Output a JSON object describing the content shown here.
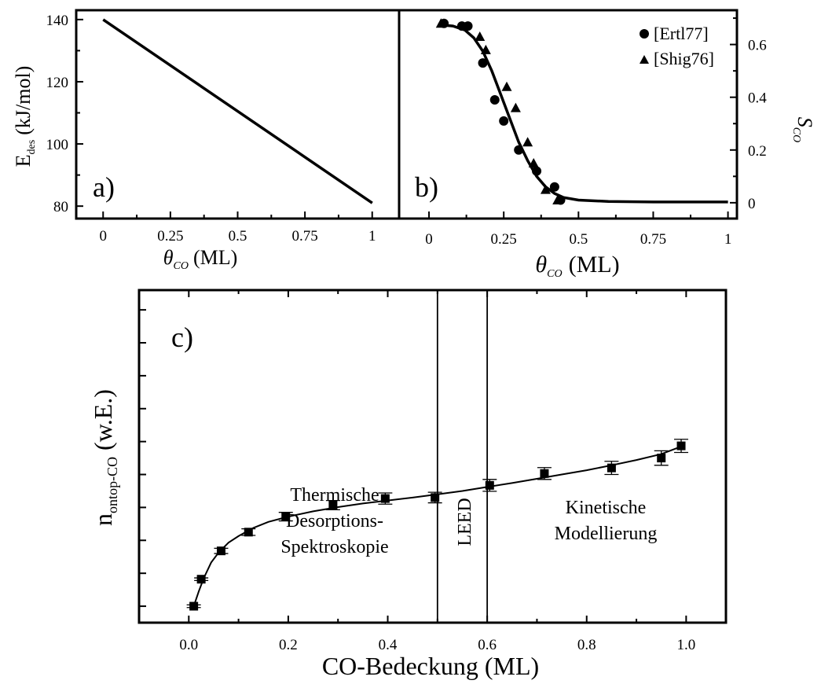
{
  "chart_data": [
    {
      "type": "line",
      "panel_label": "a)",
      "xlabel_symbol": "θ",
      "xlabel_sub": "CO",
      "xlabel_unit": "(ML)",
      "ylabel_main": "E",
      "ylabel_sub": "des",
      "ylabel_unit": "(kJ/mol)",
      "xlim": [
        -0.1,
        1.1
      ],
      "ylim": [
        76,
        143
      ],
      "xticks": [
        0,
        0.25,
        0.5,
        0.75,
        1
      ],
      "xtick_labels": [
        "0",
        "0.25",
        "0.5",
        "0.75",
        "1"
      ],
      "yticks": [
        80,
        100,
        120,
        140
      ],
      "ytick_labels": [
        "80",
        "100",
        "120",
        "140"
      ],
      "series": [
        {
          "x": [
            0,
            1
          ],
          "y": [
            140,
            81
          ]
        }
      ]
    },
    {
      "type": "scatter",
      "panel_label": "b)",
      "xlabel_symbol": "θ",
      "xlabel_sub": "CO",
      "xlabel_unit": "(ML)",
      "ylabel_main": "S",
      "ylabel_sub": "CO",
      "xlim": [
        -0.1,
        1.03
      ],
      "ylim": [
        -0.06,
        0.73
      ],
      "xticks": [
        0,
        0.25,
        0.5,
        0.75,
        1
      ],
      "xtick_labels": [
        "0",
        "0.25",
        "0.5",
        "0.75",
        "1"
      ],
      "yticks": [
        0,
        0.2,
        0.4,
        0.6
      ],
      "ytick_labels": [
        "0",
        "0.2",
        "0.4",
        "0.6"
      ],
      "legend_position": "top-right",
      "series": [
        {
          "name": "[Ertl77]",
          "marker": "circle",
          "x": [
            0.05,
            0.11,
            0.13,
            0.18,
            0.22,
            0.25,
            0.3,
            0.36,
            0.42,
            0.44
          ],
          "y": [
            0.68,
            0.67,
            0.67,
            0.53,
            0.39,
            0.31,
            0.2,
            0.12,
            0.06,
            0.01
          ]
        },
        {
          "name": "[Shig76]",
          "marker": "triangle",
          "x": [
            0.04,
            0.17,
            0.19,
            0.26,
            0.29,
            0.33,
            0.35,
            0.39,
            0.43
          ],
          "y": [
            0.68,
            0.63,
            0.58,
            0.44,
            0.36,
            0.23,
            0.15,
            0.05,
            0.01
          ]
        },
        {
          "name": "fit",
          "marker": "none",
          "x": [
            0.03,
            0.08,
            0.12,
            0.15,
            0.18,
            0.21,
            0.24,
            0.27,
            0.3,
            0.33,
            0.36,
            0.39,
            0.42,
            0.45,
            0.5,
            0.6,
            0.75,
            1.0
          ],
          "y": [
            0.675,
            0.67,
            0.655,
            0.625,
            0.575,
            0.5,
            0.41,
            0.32,
            0.23,
            0.16,
            0.1,
            0.06,
            0.035,
            0.02,
            0.01,
            0.005,
            0.003,
            0.003
          ]
        }
      ]
    },
    {
      "type": "scatter",
      "panel_label": "c)",
      "xlabel": "CO-Bedeckung (ML)",
      "ylabel_main": "n",
      "ylabel_sub": "ontop-CO",
      "ylabel_unit": "(w.E.)",
      "xlim": [
        -0.1,
        1.08
      ],
      "ylim": [
        0.5,
        10.6
      ],
      "xticks": [
        0.0,
        0.2,
        0.4,
        0.6,
        0.8,
        1.0
      ],
      "xtick_labels": [
        "0.0",
        "0.2",
        "0.4",
        "0.6",
        "0.8",
        "1.0"
      ],
      "yticks": [
        1,
        2,
        3,
        4,
        5,
        6,
        7,
        8,
        9,
        10
      ],
      "vlines": [
        0.5,
        0.6
      ],
      "regions": [
        {
          "lines": [
            "Thermische",
            "Desorptions-",
            "Spektroskopie"
          ]
        },
        {
          "lines": [
            "LEED"
          ]
        },
        {
          "lines": [
            "Kinetische",
            "Modellierung"
          ]
        }
      ],
      "series": [
        {
          "name": "data",
          "marker": "square",
          "x": [
            0.01,
            0.025,
            0.065,
            0.12,
            0.195,
            0.29,
            0.395,
            0.495,
            0.605,
            0.715,
            0.85,
            0.95,
            0.99
          ],
          "y": [
            1.0,
            1.82,
            2.68,
            3.25,
            3.72,
            4.07,
            4.27,
            4.3,
            4.67,
            5.03,
            5.2,
            5.5,
            5.87
          ],
          "err": [
            0.04,
            0.04,
            0.08,
            0.1,
            0.13,
            0.14,
            0.17,
            0.16,
            0.18,
            0.18,
            0.2,
            0.22,
            0.2
          ]
        },
        {
          "name": "fit",
          "marker": "none",
          "x": [
            0.01,
            0.02,
            0.03,
            0.045,
            0.06,
            0.08,
            0.1,
            0.13,
            0.16,
            0.2,
            0.25,
            0.3,
            0.35,
            0.4,
            0.45,
            0.5,
            0.55,
            0.6,
            0.65,
            0.7,
            0.75,
            0.8,
            0.85,
            0.9,
            0.95,
            0.99
          ],
          "y": [
            1.0,
            1.45,
            1.85,
            2.33,
            2.63,
            2.93,
            3.13,
            3.38,
            3.56,
            3.72,
            3.88,
            4.01,
            4.12,
            4.21,
            4.3,
            4.4,
            4.5,
            4.62,
            4.74,
            4.87,
            5.0,
            5.13,
            5.28,
            5.44,
            5.62,
            5.85
          ]
        }
      ]
    }
  ]
}
